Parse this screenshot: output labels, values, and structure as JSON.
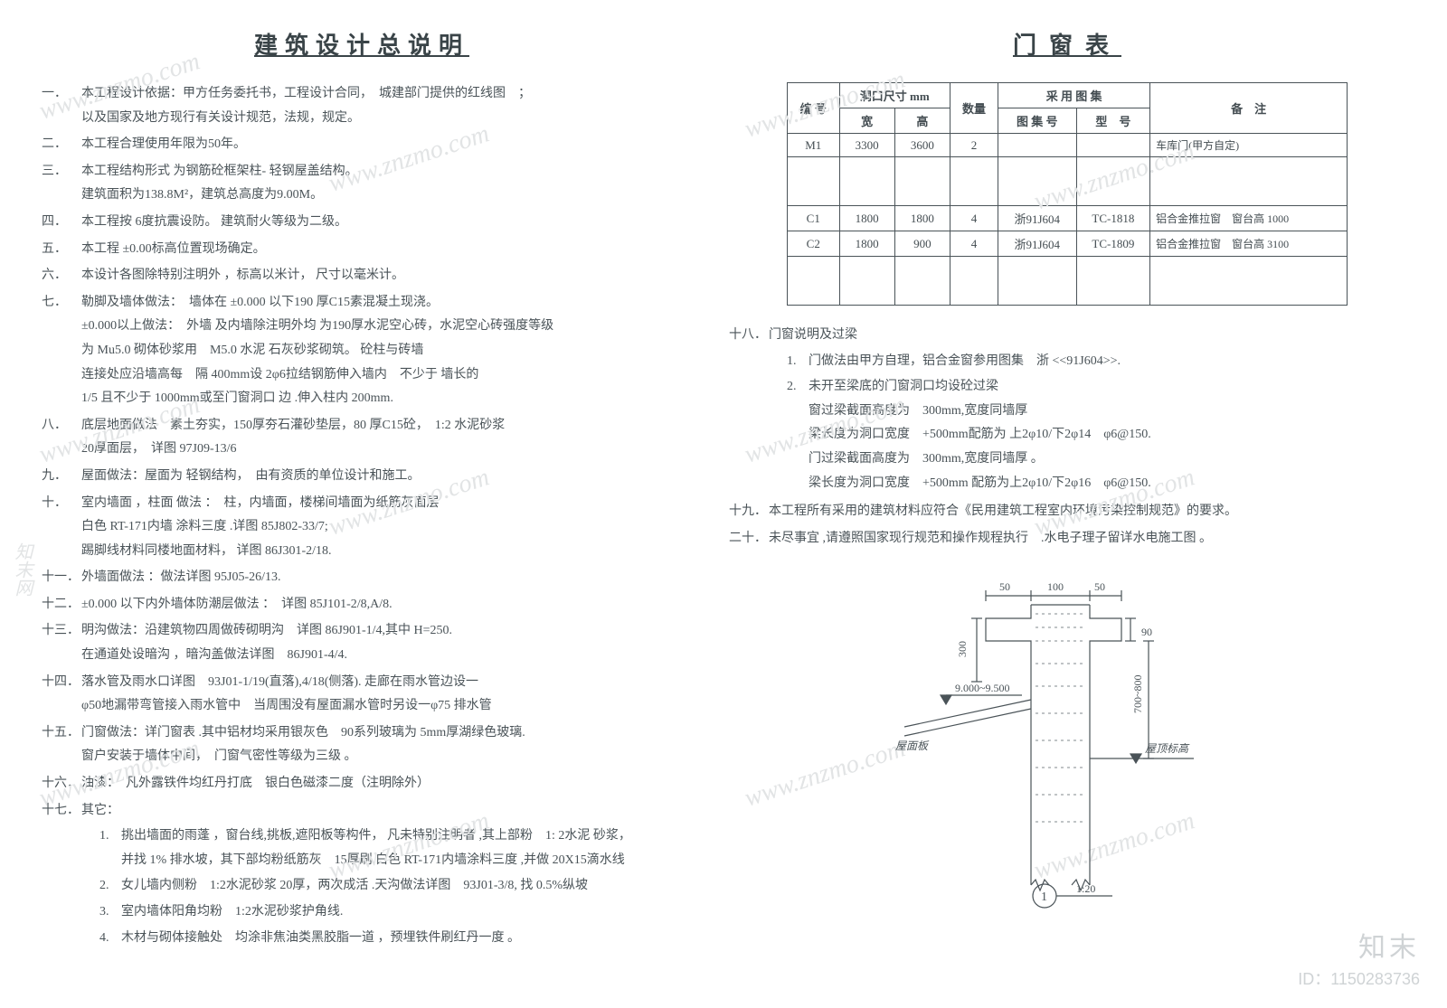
{
  "left": {
    "title": "建筑设计总说明",
    "notes": [
      {
        "num": "一．",
        "text": "本工程设计依据：甲方任务委托书，工程设计合同，　城建部门提供的红线图　；\n以及国家及地方现行有关设计规范，法规，规定。"
      },
      {
        "num": "二．",
        "text": "本工程合理使用年限为50年。"
      },
      {
        "num": "三．",
        "text": "本工程结构形式 为钢筋砼框架柱- 轻钢屋盖结构。\n建筑面积为138.8M²，建筑总高度为9.00M。"
      },
      {
        "num": "四．",
        "text": "本工程按 6度抗震设防。 建筑耐火等级为二级。"
      },
      {
        "num": "五．",
        "text": "本工程 ±0.00标高位置现场确定。"
      },
      {
        "num": "六．",
        "text": "本设计各图除特别注明外 ，标高以米计， 尺寸以毫米计。"
      },
      {
        "num": "七．",
        "text": "勒脚及墙体做法：　墙体在 ±0.000 以下190 厚C15素混凝土现浇。\n±0.000以上做法：　外墙 及内墙除注明外均 为190厚水泥空心砖，水泥空心砖强度等级\n为 Mu5.0 砌体砂浆用　M5.0 水泥 石灰砂浆砌筑。 砼柱与砖墙\n连接处应沿墙高每　隔 400mm设 2φ6拉结钢筋伸入墙内　不少于 墙长的\n1/5 且不少于 1000mm或至门窗洞口 边 .伸入柱内 200mm."
      },
      {
        "num": "八．",
        "text": "底层地面做法　素土夯实，150厚夯石灌砂垫层，80 厚C15砼，　1:2 水泥砂浆\n20厚面层，　详图 97J09-13/6"
      },
      {
        "num": "九．",
        "text": "屋面做法：屋面为 轻钢结构，　由有资质的单位设计和施工。"
      },
      {
        "num": "十．",
        "text": "室内墙面 ，柱面 做法 ：　柱，内墙面，楼梯间墙面为纸筋灰面层\n白色 RT-171内墙 涂料三度 .详图 85J802-33/7;\n踢脚线材料同楼地面材料， 详图 86J301-2/18."
      },
      {
        "num": "十一．",
        "text": "外墙面做法 ：做法详图 95J05-26/13."
      },
      {
        "num": "十二．",
        "text": "±0.000 以下内外墙体防潮层做法 ：　详图 85J101-2/8,A/8."
      },
      {
        "num": "十三．",
        "text": "明沟做法：沿建筑物四周做砖砌明沟　详图 86J901-1/4,其中 H=250.\n在通道处设暗沟 ，暗沟盖做法详图　86J901-4/4."
      },
      {
        "num": "十四．",
        "text": "落水管及雨水口详图　93J01-1/19(直落),4/18(侧落). 走廊在雨水管边设一\nφ50地漏带弯管接入雨水管中　当周围没有屋面漏水管时另设一φ75 排水管"
      },
      {
        "num": "十五．",
        "text": "门窗做法：详门窗表 .其中铝材均采用银灰色　90系列玻璃为 5mm厚湖绿色玻璃.\n窗户安装于墙体中间，　门窗气密性等级为三级 。"
      },
      {
        "num": "十六．",
        "text": "油漆：　凡外露铁件均红丹打底　银白色磁漆二度（注明除外）"
      },
      {
        "num": "十七．",
        "text": "其它：",
        "subs": [
          {
            "n": "1.",
            "t": "挑出墙面的雨蓬 ，窗台线,挑板,遮阳板等构件， 凡未特别注明者 ,其上部粉　1: 2水泥 砂浆，\n并找 1% 排水坡，其下部均粉纸筋灰　15厚刷 白色 RT-171内墙涂料三度 ,并做  20X15滴水线"
          },
          {
            "n": "2.",
            "t": "女儿墙内侧粉　1:2水泥砂浆  20厚，两次成活 .天沟做法详图　93J01-3/8, 找 0.5%纵坡"
          },
          {
            "n": "3.",
            "t": "室内墙体阳角均粉　1:2水泥砂浆护角线."
          },
          {
            "n": "4.",
            "t": "木材与砌体接触处　均涂非焦油类黑胶脂一道 ，预埋铁件刷红丹一度 。"
          }
        ]
      }
    ]
  },
  "right": {
    "title": "门窗表",
    "table": {
      "headers": {
        "code": "编 号",
        "opening": "洞口尺寸  mm",
        "width": "宽",
        "height": "高",
        "qty": "数量",
        "atlas": "采 用 图 集",
        "atlas_no": "图 集 号",
        "model_no": "型　号",
        "remark": "备　注"
      },
      "rows": [
        {
          "code": "M1",
          "w": "3300",
          "h": "3600",
          "qty": "2",
          "atlas": "",
          "model": "",
          "remark": "车库门(甲方自定)"
        },
        {
          "gap": true
        },
        {
          "code": "C1",
          "w": "1800",
          "h": "1800",
          "qty": "4",
          "atlas": "浙91J604",
          "model": "TC-1818",
          "remark": "铝合金推拉窗　窗台高 1000"
        },
        {
          "code": "C2",
          "w": "1800",
          "h": "900",
          "qty": "4",
          "atlas": "浙91J604",
          "model": "TC-1809",
          "remark": "铝合金推拉窗　窗台高 3100"
        },
        {
          "gap": true
        }
      ]
    },
    "notes": [
      {
        "num": "十八．",
        "text": "门窗说明及过梁",
        "subs": [
          {
            "n": "1.",
            "t": "门做法由甲方自理，铝合金窗参用图集　浙 <<91J604>>."
          },
          {
            "n": "2.",
            "t": "未开至梁底的门窗洞口均设砼过梁\n窗过梁截面高度为　300mm,宽度同墙厚\n梁长度为洞口宽度　+500mm配筋为 上2φ10/下2φ14　φ6@150.\n门过梁截面高度为　300mm,宽度同墙厚 。\n梁长度为洞口宽度　+500mm 配筋为上2φ10/下2φ16　φ6@150."
          }
        ]
      },
      {
        "num": "十九．",
        "text": "本工程所有采用的建筑材料应符合《民用建筑工程室内环境污染控制规范》的要求。"
      },
      {
        "num": "二十．",
        "text": "未尽事宜 ,请遵照国家现行规范和操作规程执行　.水电子理子留详水电施工图 。"
      }
    ],
    "diagram": {
      "dims": {
        "top_a": "50",
        "top_b": "100",
        "top_c": "50",
        "left_v1": "300",
        "left_v2": "90",
        "right_v": "700~800"
      },
      "elev": "9.000~9.500",
      "label_roof": "屋面板",
      "label_eave": "屋顶标高",
      "tag_number": "1",
      "scale": "1:20",
      "colors": {
        "line": "#4a5358",
        "fill_hatch": "#9aa0a3"
      }
    }
  },
  "watermark": {
    "text": "www.znzmo.com",
    "cn": "知末网"
  },
  "corner": {
    "brand": "知末",
    "id": "ID：1150283736"
  }
}
